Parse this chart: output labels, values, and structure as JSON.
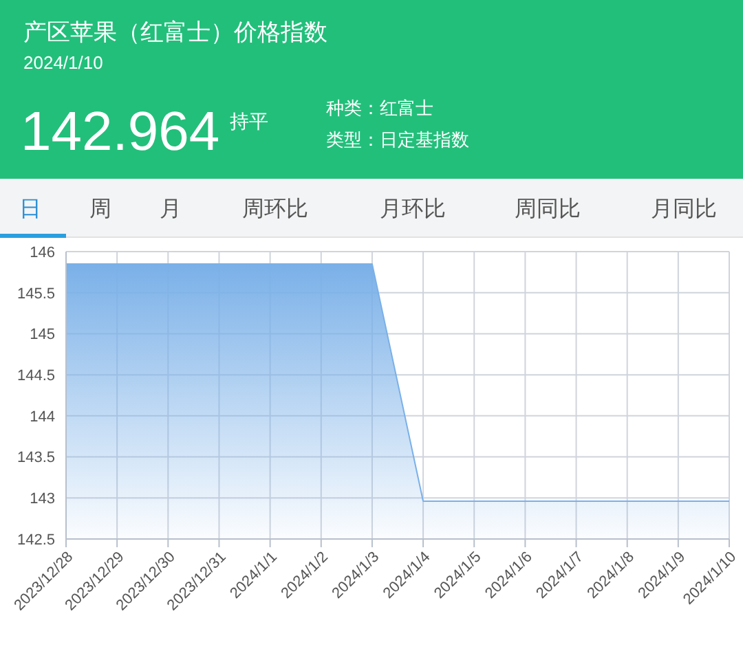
{
  "chart_data": {
    "type": "area",
    "title": "产区苹果（红富士）价格指数",
    "subtitle": "2024/1/10",
    "annotations": [
      "142.964",
      "持平",
      "种类：红富士",
      "类型：日定基指数",
      "日",
      "周",
      "月",
      "周环比",
      "月环比",
      "周同比",
      "月同比"
    ],
    "categories": [
      "2023/12/28",
      "2023/12/29",
      "2023/12/30",
      "2023/12/31",
      "2024/1/1",
      "2024/1/2",
      "2024/1/3",
      "2024/1/4",
      "2024/1/5",
      "2024/1/6",
      "2024/1/7",
      "2024/1/8",
      "2024/1/9",
      "2024/1/10"
    ],
    "series": [
      {
        "color": "#7ab0e8",
        "values": [
          145.85,
          145.85,
          145.85,
          145.85,
          145.85,
          145.85,
          145.85,
          142.96,
          142.96,
          142.96,
          142.96,
          142.96,
          142.96,
          142.96
        ]
      }
    ],
    "ylim": [
      142.5,
      146
    ],
    "yticks": [
      142.5,
      143,
      143.5,
      144,
      144.5,
      145,
      145.5,
      146
    ],
    "grid": true,
    "legend": false,
    "marker": "none",
    "line_style": "solid"
  }
}
